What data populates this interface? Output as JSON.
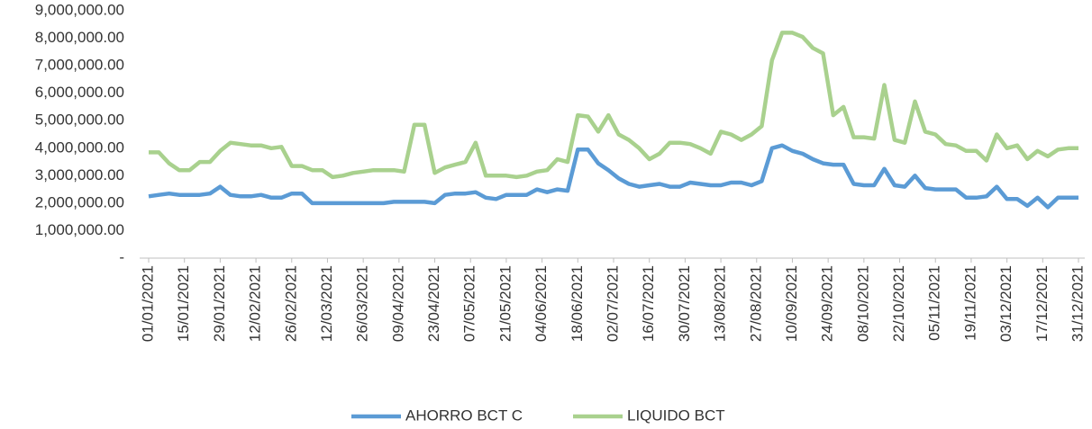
{
  "chart_data": {
    "type": "line",
    "x": [
      "01/01/2021",
      "05/01/2021",
      "09/01/2021",
      "13/01/2021",
      "17/01/2021",
      "21/01/2021",
      "25/01/2021",
      "29/01/2021",
      "02/02/2021",
      "06/02/2021",
      "10/02/2021",
      "14/02/2021",
      "18/02/2021",
      "22/02/2021",
      "26/02/2021",
      "02/03/2021",
      "06/03/2021",
      "10/03/2021",
      "14/03/2021",
      "18/03/2021",
      "22/03/2021",
      "26/03/2021",
      "30/03/2021",
      "03/04/2021",
      "07/04/2021",
      "11/04/2021",
      "15/04/2021",
      "19/04/2021",
      "23/04/2021",
      "27/04/2021",
      "01/05/2021",
      "05/05/2021",
      "09/05/2021",
      "13/05/2021",
      "17/05/2021",
      "21/05/2021",
      "25/05/2021",
      "29/05/2021",
      "02/06/2021",
      "06/06/2021",
      "10/06/2021",
      "14/06/2021",
      "18/06/2021",
      "22/06/2021",
      "26/06/2021",
      "30/06/2021",
      "04/07/2021",
      "08/07/2021",
      "12/07/2021",
      "16/07/2021",
      "20/07/2021",
      "24/07/2021",
      "28/07/2021",
      "01/08/2021",
      "05/08/2021",
      "09/08/2021",
      "13/08/2021",
      "17/08/2021",
      "21/08/2021",
      "25/08/2021",
      "29/08/2021",
      "02/09/2021",
      "06/09/2021",
      "10/09/2021",
      "14/09/2021",
      "18/09/2021",
      "22/09/2021",
      "26/09/2021",
      "30/09/2021",
      "04/10/2021",
      "08/10/2021",
      "12/10/2021",
      "16/10/2021",
      "20/10/2021",
      "24/10/2021",
      "28/10/2021",
      "01/11/2021",
      "05/11/2021",
      "09/11/2021",
      "13/11/2021",
      "17/11/2021",
      "21/11/2021",
      "25/11/2021",
      "29/11/2021",
      "03/12/2021",
      "07/12/2021",
      "11/12/2021",
      "15/12/2021",
      "19/12/2021",
      "23/12/2021",
      "27/12/2021",
      "31/12/2021"
    ],
    "series": [
      {
        "name": "AHORRO BCT C",
        "color": "#5b9bd5",
        "values": [
          2250000,
          2300000,
          2350000,
          2300000,
          2300000,
          2300000,
          2350000,
          2600000,
          2300000,
          2250000,
          2250000,
          2300000,
          2200000,
          2200000,
          2350000,
          2350000,
          2000000,
          2000000,
          2000000,
          2000000,
          2000000,
          2000000,
          2000000,
          2000000,
          2050000,
          2050000,
          2050000,
          2050000,
          2000000,
          2300000,
          2350000,
          2350000,
          2400000,
          2200000,
          2150000,
          2300000,
          2300000,
          2300000,
          2500000,
          2400000,
          2500000,
          2450000,
          3950000,
          3950000,
          3450000,
          3200000,
          2900000,
          2700000,
          2600000,
          2650000,
          2700000,
          2600000,
          2600000,
          2750000,
          2700000,
          2650000,
          2650000,
          2750000,
          2750000,
          2650000,
          2800000,
          4000000,
          4100000,
          3900000,
          3800000,
          3600000,
          3450000,
          3400000,
          3400000,
          2700000,
          2650000,
          2650000,
          3250000,
          2650000,
          2600000,
          3000000,
          2550000,
          2500000,
          2500000,
          2500000,
          2200000,
          2200000,
          2250000,
          2600000,
          2150000,
          2150000,
          1900000,
          2200000,
          1850000,
          2200000,
          2200000,
          2200000
        ]
      },
      {
        "name": "LIQUIDO BCT",
        "color": "#a9d18e",
        "values": [
          3850000,
          3850000,
          3450000,
          3200000,
          3200000,
          3500000,
          3500000,
          3900000,
          4200000,
          4150000,
          4100000,
          4100000,
          4000000,
          4050000,
          3350000,
          3350000,
          3200000,
          3200000,
          2950000,
          3000000,
          3100000,
          3150000,
          3200000,
          3200000,
          3200000,
          3150000,
          4850000,
          4850000,
          3100000,
          3300000,
          3400000,
          3500000,
          4200000,
          3000000,
          3000000,
          3000000,
          2950000,
          3000000,
          3150000,
          3200000,
          3600000,
          3500000,
          5200000,
          5150000,
          4600000,
          5200000,
          4500000,
          4300000,
          4000000,
          3600000,
          3800000,
          4200000,
          4200000,
          4150000,
          4000000,
          3800000,
          4600000,
          4500000,
          4300000,
          4500000,
          4800000,
          7200000,
          8200000,
          8200000,
          8050000,
          7650000,
          7450000,
          5200000,
          5500000,
          4400000,
          4400000,
          4350000,
          6300000,
          4300000,
          4200000,
          5700000,
          4600000,
          4500000,
          4150000,
          4100000,
          3900000,
          3900000,
          3550000,
          4500000,
          4000000,
          4100000,
          3600000,
          3900000,
          3700000,
          3950000,
          4000000,
          4000000
        ]
      }
    ],
    "xlim": [
      "01/01/2021",
      "31/12/2021"
    ],
    "xticks": [
      "01/01/2021",
      "15/01/2021",
      "29/01/2021",
      "12/02/2021",
      "26/02/2021",
      "12/03/2021",
      "26/03/2021",
      "09/04/2021",
      "23/04/2021",
      "07/05/2021",
      "21/05/2021",
      "04/06/2021",
      "18/06/2021",
      "02/07/2021",
      "16/07/2021",
      "30/07/2021",
      "13/08/2021",
      "27/08/2021",
      "10/09/2021",
      "24/09/2021",
      "08/10/2021",
      "22/10/2021",
      "05/11/2021",
      "19/11/2021",
      "03/12/2021",
      "17/12/2021",
      "31/12/2021"
    ],
    "ylim": [
      0,
      9000000
    ],
    "yticks": [
      {
        "value": 0,
        "label": "-"
      },
      {
        "value": 1000000,
        "label": "1,000,000.00"
      },
      {
        "value": 2000000,
        "label": "2,000,000.00"
      },
      {
        "value": 3000000,
        "label": "3,000,000.00"
      },
      {
        "value": 4000000,
        "label": "4,000,000.00"
      },
      {
        "value": 5000000,
        "label": "5,000,000.00"
      },
      {
        "value": 6000000,
        "label": "6,000,000.00"
      },
      {
        "value": 7000000,
        "label": "7,000,000.00"
      },
      {
        "value": 8000000,
        "label": "8,000,000.00"
      },
      {
        "value": 9000000,
        "label": "9,000,000.00"
      }
    ],
    "grid": false,
    "legend": "bottom"
  }
}
